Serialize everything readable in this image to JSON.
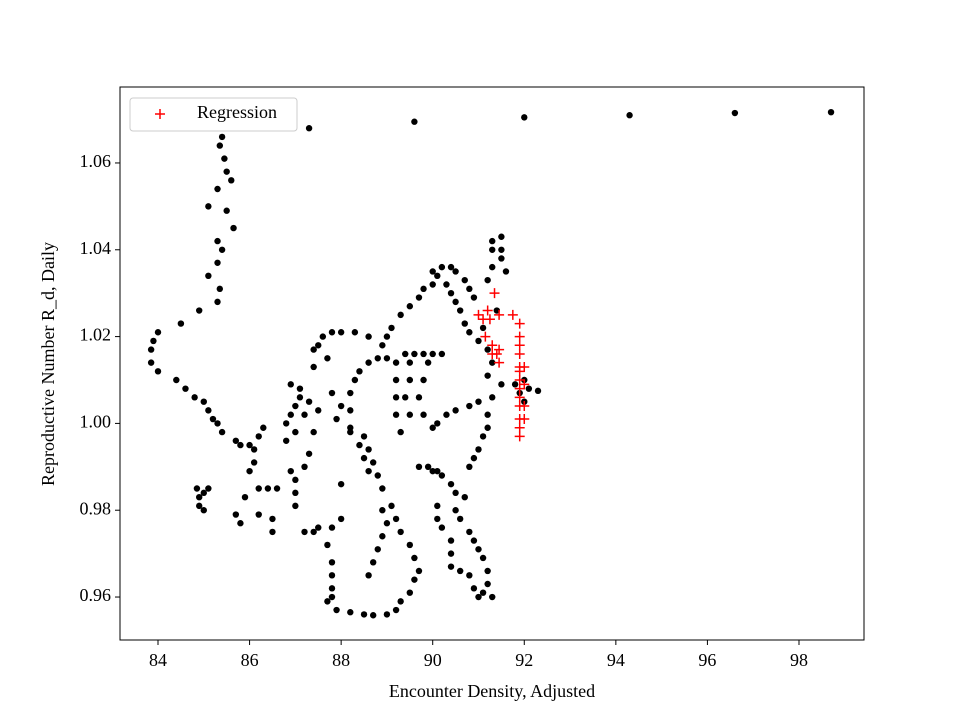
{
  "chart_data": {
    "type": "scatter",
    "xlabel": "Encounter Density, Adjusted",
    "ylabel": "Reproductive Number R_d, Daily",
    "xlim": [
      83.17,
      99.42
    ],
    "ylim": [
      0.9501,
      1.0775
    ],
    "xticks": [
      84,
      86,
      88,
      90,
      92,
      94,
      96,
      98
    ],
    "yticks": [
      0.96,
      0.98,
      {
        "value": 1,
        "label": "1.00"
      },
      1.02,
      1.04,
      1.06
    ],
    "legend": "upper left",
    "series": [
      {
        "color": "#000000",
        "marker": "o",
        "x": [
          87.3,
          89.6,
          92.0,
          94.3,
          96.6,
          98.7,
          85.4,
          85.35,
          85.45,
          85.5,
          85.6,
          85.3,
          85.1,
          85.5,
          85.65,
          85.3,
          85.4,
          85.3,
          85.1,
          85.35,
          85.3,
          84.9,
          84.5,
          84.0,
          83.9,
          83.85,
          83.85,
          84.0,
          84.4,
          84.6,
          84.8,
          85.0,
          85.1,
          85.2,
          85.3,
          85.4,
          85.7,
          85.8,
          86.0,
          86.2,
          86.3,
          84.85,
          84.9,
          85.0,
          85.1,
          84.9,
          85.0,
          85.7,
          85.8,
          85.9,
          86.0,
          86.1,
          86.2,
          86.4,
          86.6,
          86.2,
          86.5,
          86.5,
          86.1,
          86.8,
          86.9,
          87.0,
          87.1,
          86.9,
          87.1,
          87.3,
          87.2,
          87.0,
          86.8,
          86.9,
          87.0,
          87.0,
          87.0,
          87.2,
          87.4,
          87.5,
          87.3,
          87.5,
          87.4,
          87.2,
          87.4,
          87.5,
          87.6,
          87.8,
          88.0,
          88.3,
          88.6,
          88.9,
          87.7,
          87.4,
          87.8,
          87.9,
          88.0,
          88.0,
          88.0,
          87.8,
          87.7,
          87.8,
          87.8,
          87.8,
          87.8,
          87.7,
          87.9,
          88.2,
          88.5,
          88.7,
          89.0,
          89.2,
          89.3,
          89.5,
          89.6,
          89.7,
          89.6,
          89.5,
          89.3,
          89.2,
          89.1,
          88.9,
          88.8,
          88.7,
          88.6,
          88.5,
          88.2,
          88.2,
          88.2,
          88.3,
          88.4,
          88.6,
          88.8,
          89.0,
          89.2,
          89.2,
          89.2,
          89.2,
          89.3,
          89.5,
          89.4,
          89.5,
          89.5,
          89.8,
          89.9,
          90.0,
          90.2,
          89.6,
          89.4,
          89.8,
          89.7,
          89.8,
          89.7,
          89.9,
          90.1,
          90.2,
          90.4,
          90.5,
          90.7,
          90.5,
          90.6,
          90.8,
          90.9,
          91.0,
          91.1,
          91.2,
          91.2,
          91.1,
          91.3,
          91.0,
          90.9,
          90.8,
          90.6,
          90.4,
          90.4,
          90.4,
          90.2,
          90.1,
          90.1,
          90.0,
          90.0,
          90.1,
          90.3,
          90.5,
          90.8,
          91.0,
          91.3,
          91.5,
          91.2,
          91.3,
          91.2,
          91.0,
          90.8,
          90.7,
          90.6,
          90.5,
          90.4,
          90.3,
          90.1,
          90.0,
          90.2,
          90.4,
          90.5,
          90.7,
          90.8,
          90.9,
          90.0,
          89.8,
          89.7,
          89.5,
          89.3,
          89.1,
          89.0,
          91.2,
          91.3,
          91.3,
          91.3,
          91.5,
          91.5,
          91.5,
          91.6,
          91.4,
          91.1,
          91.2,
          91.2,
          91.1,
          91.0,
          90.9,
          90.8,
          88.6,
          88.7,
          88.8,
          88.9,
          89.0,
          88.9,
          88.6,
          88.5,
          88.4,
          88.2,
          92.0,
          91.9,
          92.1,
          92.3,
          91.8,
          92.0
        ],
        "y": [
          1.068,
          1.0695,
          1.0705,
          1.071,
          1.0715,
          1.0717,
          1.066,
          1.064,
          1.061,
          1.058,
          1.056,
          1.054,
          1.05,
          1.049,
          1.045,
          1.042,
          1.04,
          1.037,
          1.034,
          1.031,
          1.028,
          1.026,
          1.023,
          1.021,
          1.019,
          1.017,
          1.014,
          1.012,
          1.01,
          1.008,
          1.006,
          1.005,
          1.003,
          1.001,
          1.0,
          0.998,
          0.996,
          0.995,
          0.995,
          0.997,
          0.999,
          0.985,
          0.983,
          0.984,
          0.985,
          0.981,
          0.98,
          0.979,
          0.977,
          0.983,
          0.989,
          0.991,
          0.985,
          0.985,
          0.985,
          0.979,
          0.978,
          0.975,
          0.994,
          1.0,
          1.002,
          1.004,
          1.006,
          1.009,
          1.008,
          1.005,
          1.002,
          0.998,
          0.996,
          0.989,
          0.987,
          0.984,
          0.981,
          0.975,
          0.975,
          0.976,
          0.993,
          1.003,
          0.998,
          0.99,
          1.017,
          1.018,
          1.02,
          1.021,
          1.021,
          1.021,
          1.02,
          1.018,
          1.015,
          1.013,
          1.007,
          1.001,
          1.004,
          0.986,
          0.978,
          0.976,
          0.972,
          0.968,
          0.965,
          0.962,
          0.96,
          0.959,
          0.957,
          0.9565,
          0.956,
          0.9558,
          0.956,
          0.957,
          0.959,
          0.961,
          0.964,
          0.966,
          0.969,
          0.972,
          0.975,
          0.978,
          0.981,
          0.985,
          0.988,
          0.991,
          0.994,
          0.997,
          0.999,
          1.003,
          1.007,
          1.01,
          1.012,
          1.014,
          1.015,
          1.015,
          1.014,
          1.01,
          1.006,
          1.002,
          0.998,
          1.002,
          1.006,
          1.01,
          1.014,
          1.016,
          1.014,
          1.016,
          1.016,
          1.016,
          1.016,
          1.01,
          1.006,
          1.002,
          0.99,
          0.99,
          0.989,
          0.988,
          0.986,
          0.984,
          0.983,
          0.98,
          0.978,
          0.975,
          0.973,
          0.971,
          0.969,
          0.966,
          0.963,
          0.961,
          0.96,
          0.96,
          0.962,
          0.965,
          0.966,
          0.967,
          0.97,
          0.973,
          0.976,
          0.978,
          0.981,
          0.989,
          0.999,
          1.0,
          1.002,
          1.003,
          1.004,
          1.005,
          1.006,
          1.009,
          1.011,
          1.014,
          1.017,
          1.019,
          1.021,
          1.023,
          1.026,
          1.028,
          1.03,
          1.032,
          1.034,
          1.035,
          1.036,
          1.036,
          1.035,
          1.033,
          1.031,
          1.029,
          1.032,
          1.031,
          1.029,
          1.027,
          1.025,
          1.022,
          1.02,
          1.033,
          1.036,
          1.04,
          1.042,
          1.043,
          1.04,
          1.038,
          1.035,
          1.026,
          1.022,
          1.002,
          0.999,
          0.997,
          0.994,
          0.992,
          0.99,
          0.965,
          0.968,
          0.971,
          0.974,
          0.977,
          0.98,
          0.989,
          0.992,
          0.995,
          0.998,
          1.01,
          1.007,
          1.008,
          1.0075,
          1.009,
          1.005
        ]
      },
      {
        "name": "Regression",
        "color": "#ff0000",
        "marker": "+",
        "x": [
          91.0,
          91.1,
          91.2,
          91.25,
          91.15,
          91.35,
          91.45,
          91.75,
          91.3,
          91.4,
          91.45,
          91.3,
          91.45,
          91.9,
          91.9,
          91.9,
          91.9,
          91.9,
          91.9,
          91.9,
          91.9,
          91.9,
          91.9,
          91.9,
          91.9,
          91.9,
          92.0,
          92.0,
          92.0,
          92.0
        ],
        "y": [
          1.025,
          1.024,
          1.026,
          1.024,
          1.02,
          1.03,
          1.025,
          1.025,
          1.018,
          1.016,
          1.017,
          1.016,
          1.014,
          1.023,
          1.02,
          1.018,
          1.016,
          1.013,
          1.012,
          1.01,
          1.008,
          1.006,
          1.004,
          1.001,
          0.999,
          0.997,
          1.013,
          1.009,
          1.004,
          1.001
        ]
      }
    ]
  }
}
